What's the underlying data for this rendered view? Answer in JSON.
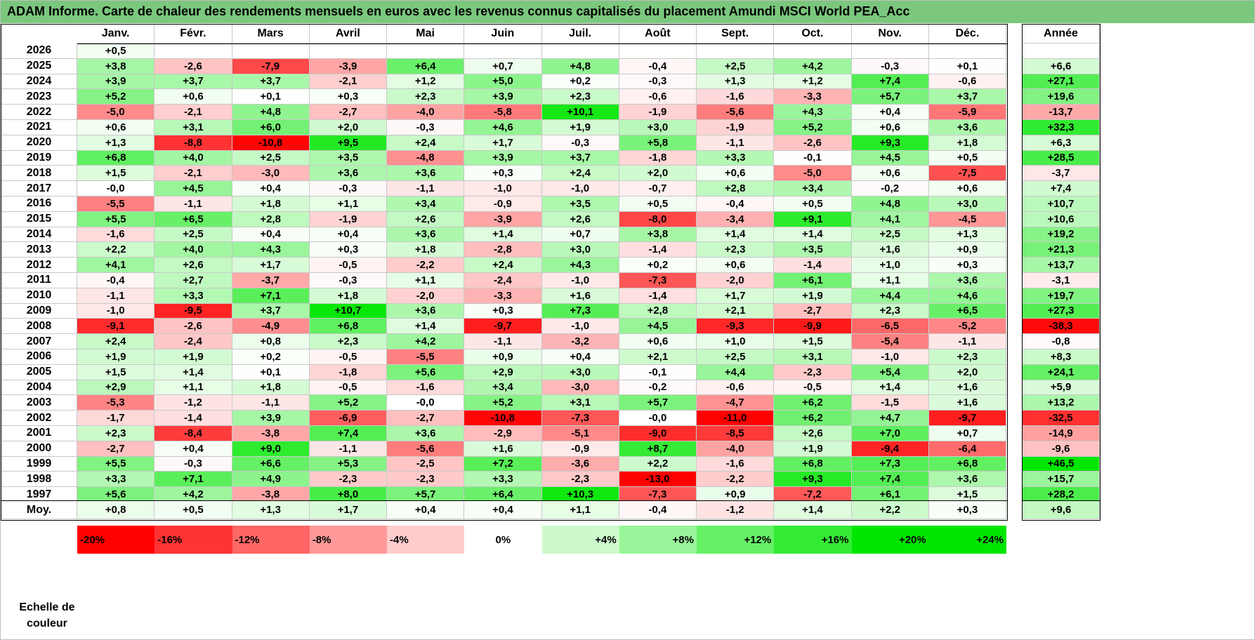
{
  "title": "ADAM Informe. Carte de chaleur des rendements mensuels en euros avec les revenus connus capitalisés du placement Amundi MSCI World PEA_Acc",
  "chart_data": {
    "type": "heatmap",
    "title": "ADAM Informe. Carte de chaleur des rendements mensuels en euros avec les revenus connus capitalisés du placement Amundi MSCI World PEA_Acc",
    "months": [
      "Janv.",
      "Févr.",
      "Mars",
      "Avril",
      "Mai",
      "Juin",
      "Juil.",
      "Août",
      "Sept.",
      "Oct.",
      "Nov.",
      "Déc."
    ],
    "annual_header": "Année",
    "rows": [
      {
        "year": "2026",
        "values": [
          "+0,5",
          "",
          "",
          "",
          "",
          "",
          "",
          "",
          "",
          "",
          "",
          ""
        ],
        "annual": ""
      },
      {
        "year": "2025",
        "values": [
          "+3,8",
          "-2,6",
          "-7,9",
          "-3,9",
          "+6,4",
          "+0,7",
          "+4,8",
          "-0,4",
          "+2,5",
          "+4,2",
          "-0,3",
          "+0,1"
        ],
        "annual": "+6,6"
      },
      {
        "year": "2024",
        "values": [
          "+3,9",
          "+3,7",
          "+3,7",
          "-2,1",
          "+1,2",
          "+5,0",
          "+0,2",
          "-0,3",
          "+1,3",
          "+1,2",
          "+7,4",
          "-0,6"
        ],
        "annual": "+27,1"
      },
      {
        "year": "2023",
        "values": [
          "+5,2",
          "+0,6",
          "+0,1",
          "+0,3",
          "+2,3",
          "+3,9",
          "+2,3",
          "-0,6",
          "-1,6",
          "-3,3",
          "+5,7",
          "+3,7"
        ],
        "annual": "+19,6"
      },
      {
        "year": "2022",
        "values": [
          "-5,0",
          "-2,1",
          "+4,8",
          "-2,7",
          "-4,0",
          "-5,8",
          "+10,1",
          "-1,9",
          "-5,6",
          "+4,3",
          "+0,4",
          "-5,9"
        ],
        "annual": "-13,7"
      },
      {
        "year": "2021",
        "values": [
          "+0,6",
          "+3,1",
          "+6,0",
          "+2,0",
          "-0,3",
          "+4,6",
          "+1,9",
          "+3,0",
          "-1,9",
          "+5,2",
          "+0,6",
          "+3,6"
        ],
        "annual": "+32,3"
      },
      {
        "year": "2020",
        "values": [
          "+1,3",
          "-8,8",
          "-10,8",
          "+9,5",
          "+2,4",
          "+1,7",
          "-0,3",
          "+5,8",
          "-1,1",
          "-2,6",
          "+9,3",
          "+1,8"
        ],
        "annual": "+6,3"
      },
      {
        "year": "2019",
        "values": [
          "+6,8",
          "+4,0",
          "+2,5",
          "+3,5",
          "-4,8",
          "+3,9",
          "+3,7",
          "-1,8",
          "+3,3",
          "-0,1",
          "+4,5",
          "+0,5"
        ],
        "annual": "+28,5"
      },
      {
        "year": "2018",
        "values": [
          "+1,5",
          "-2,1",
          "-3,0",
          "+3,6",
          "+3,6",
          "+0,3",
          "+2,4",
          "+2,0",
          "+0,6",
          "-5,0",
          "+0,6",
          "-7,5"
        ],
        "annual": "-3,7"
      },
      {
        "year": "2017",
        "values": [
          "-0,0",
          "+4,5",
          "+0,4",
          "-0,3",
          "-1,1",
          "-1,0",
          "-1,0",
          "-0,7",
          "+2,8",
          "+3,4",
          "-0,2",
          "+0,6"
        ],
        "annual": "+7,4"
      },
      {
        "year": "2016",
        "values": [
          "-5,5",
          "-1,1",
          "+1,8",
          "+1,1",
          "+3,4",
          "-0,9",
          "+3,5",
          "+0,5",
          "-0,4",
          "+0,5",
          "+4,8",
          "+3,0"
        ],
        "annual": "+10,7"
      },
      {
        "year": "2015",
        "values": [
          "+5,5",
          "+6,5",
          "+2,8",
          "-1,9",
          "+2,6",
          "-3,9",
          "+2,6",
          "-8,0",
          "-3,4",
          "+9,1",
          "+4,1",
          "-4,5"
        ],
        "annual": "+10,6"
      },
      {
        "year": "2014",
        "values": [
          "-1,6",
          "+2,5",
          "+0,4",
          "+0,4",
          "+3,6",
          "+1,4",
          "+0,7",
          "+3,8",
          "+1,4",
          "+1,4",
          "+2,5",
          "+1,3"
        ],
        "annual": "+19,2"
      },
      {
        "year": "2013",
        "values": [
          "+2,2",
          "+4,0",
          "+4,3",
          "+0,3",
          "+1,8",
          "-2,8",
          "+3,0",
          "-1,4",
          "+2,3",
          "+3,5",
          "+1,6",
          "+0,9"
        ],
        "annual": "+21,3"
      },
      {
        "year": "2012",
        "values": [
          "+4,1",
          "+2,6",
          "+1,7",
          "-0,5",
          "-2,2",
          "+2,4",
          "+4,3",
          "+0,2",
          "+0,6",
          "-1,4",
          "+1,0",
          "+0,3"
        ],
        "annual": "+13,7"
      },
      {
        "year": "2011",
        "values": [
          "-0,4",
          "+2,7",
          "-3,7",
          "-0,3",
          "+1,1",
          "-2,4",
          "-1,0",
          "-7,3",
          "-2,0",
          "+6,1",
          "+1,1",
          "+3,6"
        ],
        "annual": "-3,1"
      },
      {
        "year": "2010",
        "values": [
          "-1,1",
          "+3,3",
          "+7,1",
          "+1,8",
          "-2,0",
          "-3,3",
          "+1,6",
          "-1,4",
          "+1,7",
          "+1,9",
          "+4,4",
          "+4,6"
        ],
        "annual": "+19,7"
      },
      {
        "year": "2009",
        "values": [
          "-1,0",
          "-9,5",
          "+3,7",
          "+10,7",
          "+3,6",
          "+0,3",
          "+7,3",
          "+2,8",
          "+2,1",
          "-2,7",
          "+2,3",
          "+6,5"
        ],
        "annual": "+27,3"
      },
      {
        "year": "2008",
        "values": [
          "-9,1",
          "-2,6",
          "-4,9",
          "+6,8",
          "+1,4",
          "-9,7",
          "-1,0",
          "+4,5",
          "-9,3",
          "-9,9",
          "-6,5",
          "-5,2"
        ],
        "annual": "-38,3"
      },
      {
        "year": "2007",
        "values": [
          "+2,4",
          "-2,4",
          "+0,8",
          "+2,3",
          "+4,2",
          "-1,1",
          "-3,2",
          "+0,6",
          "+1,0",
          "+1,5",
          "-5,4",
          "-1,1"
        ],
        "annual": "-0,8"
      },
      {
        "year": "2006",
        "values": [
          "+1,9",
          "+1,9",
          "+0,2",
          "-0,5",
          "-5,5",
          "+0,9",
          "+0,4",
          "+2,1",
          "+2,5",
          "+3,1",
          "-1,0",
          "+2,3"
        ],
        "annual": "+8,3"
      },
      {
        "year": "2005",
        "values": [
          "+1,5",
          "+1,4",
          "+0,1",
          "-1,8",
          "+5,6",
          "+2,9",
          "+3,0",
          "-0,1",
          "+4,4",
          "-2,3",
          "+5,4",
          "+2,0"
        ],
        "annual": "+24,1"
      },
      {
        "year": "2004",
        "values": [
          "+2,9",
          "+1,1",
          "+1,8",
          "-0,5",
          "-1,6",
          "+3,4",
          "-3,0",
          "-0,2",
          "-0,6",
          "-0,5",
          "+1,4",
          "+1,6"
        ],
        "annual": "+5,9"
      },
      {
        "year": "2003",
        "values": [
          "-5,3",
          "-1,2",
          "-1,1",
          "+5,2",
          "-0,0",
          "+5,2",
          "+3,1",
          "+5,7",
          "-4,7",
          "+6,2",
          "-1,5",
          "+1,6"
        ],
        "annual": "+13,2"
      },
      {
        "year": "2002",
        "values": [
          "-1,7",
          "-1,4",
          "+3,9",
          "-6,9",
          "-2,7",
          "-10,8",
          "-7,3",
          "-0,0",
          "-11,0",
          "+6,2",
          "+4,7",
          "-9,7"
        ],
        "annual": "-32,5"
      },
      {
        "year": "2001",
        "values": [
          "+2,3",
          "-8,4",
          "-3,8",
          "+7,4",
          "+3,6",
          "-2,9",
          "-5,1",
          "-9,0",
          "-8,5",
          "+2,6",
          "+7,0",
          "+0,7"
        ],
        "annual": "-14,9"
      },
      {
        "year": "2000",
        "values": [
          "-2,7",
          "+0,4",
          "+9,0",
          "-1,1",
          "-5,6",
          "+1,6",
          "-0,9",
          "+8,7",
          "-4,0",
          "+1,9",
          "-9,4",
          "-6,4"
        ],
        "annual": "-9,6"
      },
      {
        "year": "1999",
        "values": [
          "+5,5",
          "-0,3",
          "+6,6",
          "+5,3",
          "-2,5",
          "+7,2",
          "-3,6",
          "+2,2",
          "-1,6",
          "+6,8",
          "+7,3",
          "+6,8"
        ],
        "annual": "+46,5"
      },
      {
        "year": "1998",
        "values": [
          "+3,3",
          "+7,1",
          "+4,9",
          "-2,3",
          "-2,3",
          "+3,3",
          "-2,3",
          "-13,0",
          "-2,2",
          "+9,3",
          "+7,4",
          "+3,6"
        ],
        "annual": "+15,7"
      },
      {
        "year": "1997",
        "values": [
          "+5,6",
          "+4,2",
          "-3,8",
          "+8,0",
          "+5,7",
          "+6,4",
          "+10,3",
          "-7,3",
          "+0,9",
          "-7,2",
          "+6,1",
          "+1,5"
        ],
        "annual": "+28,2"
      }
    ],
    "average": {
      "label": "Moy.",
      "values": [
        "+0,8",
        "+0,5",
        "+1,3",
        "+1,7",
        "+0,4",
        "+0,4",
        "+1,1",
        "-0,4",
        "-1,2",
        "+1,4",
        "+2,2",
        "+0,3"
      ],
      "annual": "+9,6"
    },
    "color_scale": {
      "label_line1": "Echelle de",
      "label_line2": "couleur",
      "stops": [
        "-20%",
        "-16%",
        "-12%",
        "-8%",
        "-4%",
        "0%",
        "+4%",
        "+8%",
        "+12%",
        "+16%",
        "+20%",
        "+24%"
      ],
      "stop_values": [
        -20,
        -16,
        -12,
        -8,
        -4,
        0,
        4,
        8,
        12,
        16,
        20,
        24
      ],
      "negative_color": "#ff0000",
      "neutral_color": "#ffffff",
      "positive_color": "#00e600"
    }
  }
}
